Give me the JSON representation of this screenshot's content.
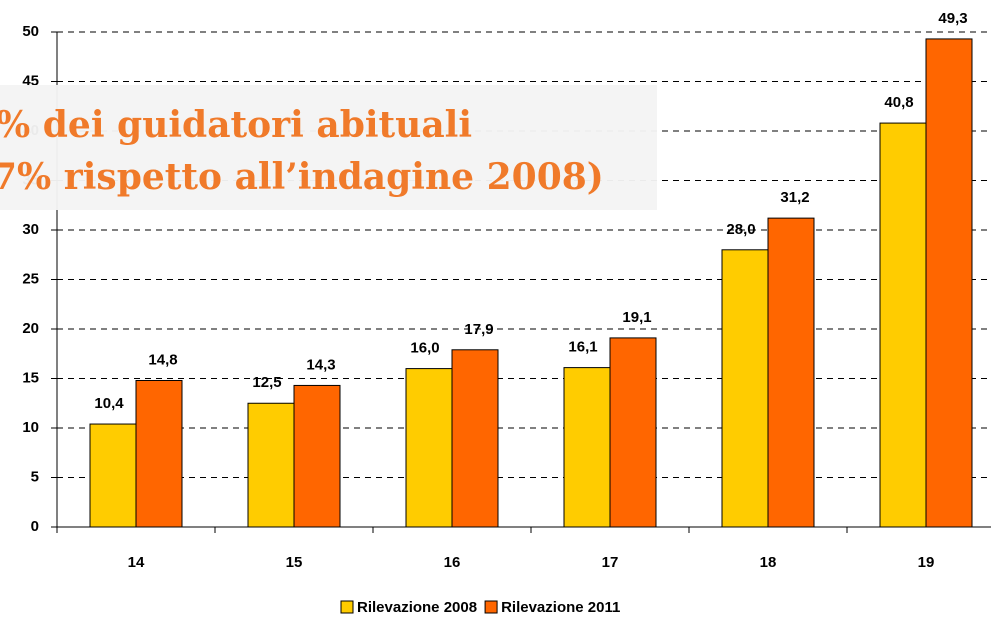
{
  "chart_data": {
    "type": "bar",
    "categories": [
      "14",
      "15",
      "16",
      "17",
      "18",
      "19"
    ],
    "series": [
      {
        "name": "Rilevazione 2008",
        "color": "#ffcc00",
        "values": [
          10.4,
          12.5,
          16.0,
          16.1,
          28.0,
          40.8
        ],
        "value_labels": [
          "10,4",
          "12,5",
          "16,0",
          "16,1",
          "28,0",
          "40,8"
        ]
      },
      {
        "name": "Rilevazione 2011",
        "color": "#ff6600",
        "values": [
          14.8,
          14.3,
          17.9,
          19.1,
          31.2,
          49.3
        ],
        "value_labels": [
          "14,8",
          "14,3",
          "17,9",
          "19,1",
          "31,2",
          "49,3"
        ]
      }
    ],
    "ylim": [
      0,
      50
    ],
    "yticks": [
      0,
      5,
      10,
      15,
      20,
      25,
      30,
      35,
      40,
      45,
      50
    ],
    "grid": true,
    "legend": "bottom",
    "annotations": [
      "% dei guidatori abituali",
      "7% rispetto all’indagine 2008)"
    ]
  }
}
